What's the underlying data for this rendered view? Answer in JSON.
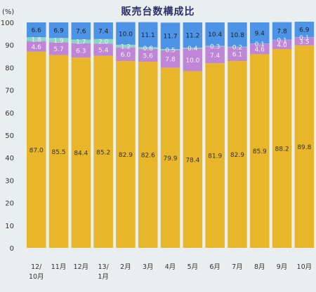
{
  "chart_data": {
    "type": "bar",
    "stacked": true,
    "title": "販売台数構成比",
    "yunit": "(%)",
    "ylim": [
      0,
      100
    ],
    "yticks": [
      0,
      10,
      20,
      30,
      40,
      50,
      60,
      70,
      80,
      90,
      100
    ],
    "categories": [
      "12/\n10月",
      "11月",
      "12月",
      "13/\n1月",
      "2月",
      "3月",
      "4月",
      "5月",
      "6月",
      "7月",
      "8月",
      "9月",
      "10月"
    ],
    "series": [
      {
        "color": "#e7b62a",
        "values": [
          87.0,
          85.5,
          84.4,
          85.2,
          82.9,
          82.6,
          79.9,
          78.4,
          81.9,
          82.9,
          85.9,
          88.2,
          89.8
        ]
      },
      {
        "color": "#bf85d6",
        "values": [
          4.6,
          5.7,
          6.3,
          5.4,
          6.0,
          5.6,
          7.8,
          10.0,
          7.4,
          6.1,
          4.6,
          4.0,
          3.5
        ]
      },
      {
        "color": "#8cd6c4",
        "values": [
          1.8,
          1.9,
          1.7,
          2.0,
          1.2,
          0.8,
          0.5,
          0.4,
          0.3,
          0.2,
          0.1,
          0.1,
          0.1
        ]
      },
      {
        "color": "#4d94e6",
        "values": [
          6.6,
          6.9,
          7.6,
          7.4,
          10.0,
          11.1,
          11.7,
          11.2,
          10.4,
          10.8,
          9.4,
          7.8,
          6.9
        ]
      }
    ],
    "grid": false
  }
}
